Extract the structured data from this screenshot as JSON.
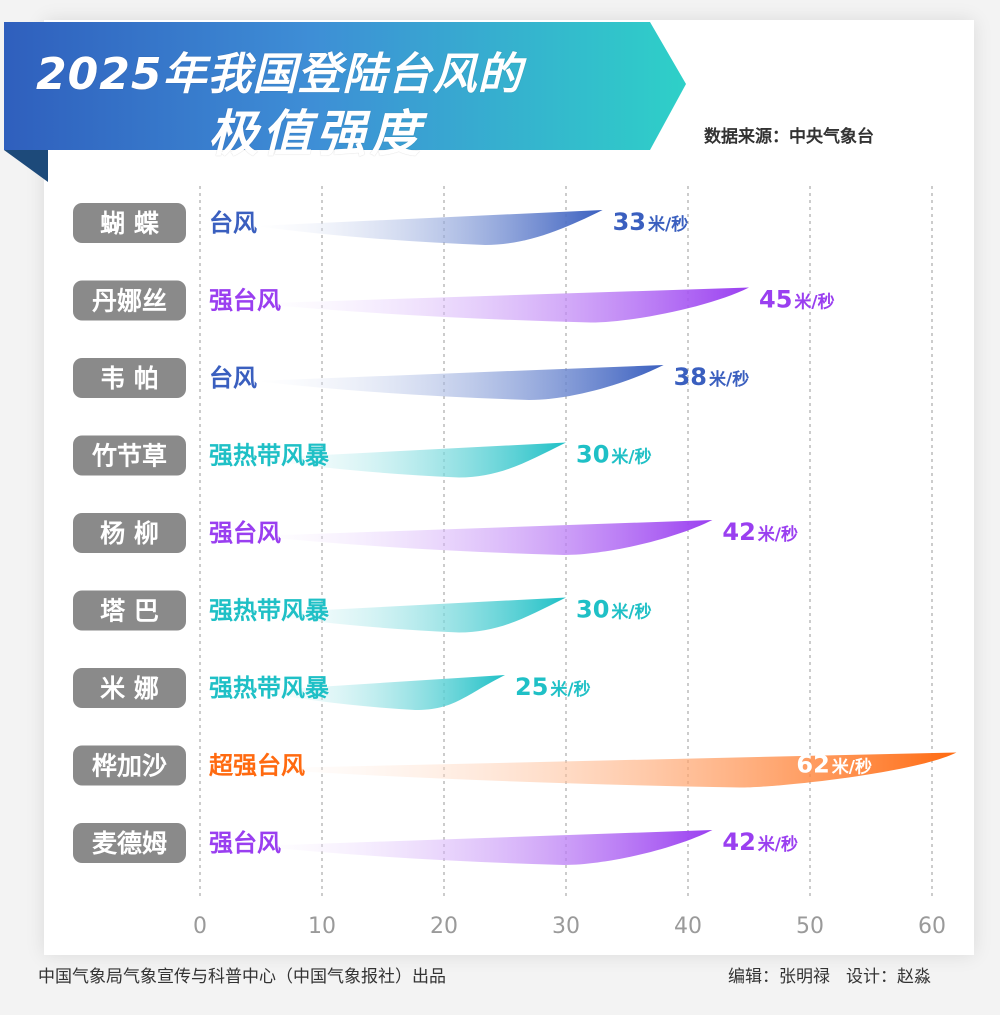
{
  "header": {
    "title_line1": "2025年我国登陆台风的",
    "title_line2": "极值强度",
    "source": "数据来源：中央气象台"
  },
  "footer": {
    "publisher": "中国气象局气象宣传与科普中心（中国气象报社）出品",
    "editor": "编辑：张明禄",
    "designer": "设计：赵淼"
  },
  "colors": {
    "台风": "#3a5fbf",
    "强台风": "#9a3ff0",
    "强热带风暴": "#1fc0c6",
    "超强台风": "#ff6a10",
    "label_box": "#8a8a8a"
  },
  "chart_data": {
    "type": "bar",
    "orientation": "horizontal",
    "unit": "米/秒",
    "xlim": [
      0,
      60
    ],
    "xticks": [
      0,
      10,
      20,
      30,
      40,
      50,
      60
    ],
    "grid": "vertical dashed",
    "categories": [
      "蝴 蝶",
      "丹娜丝",
      "韦 帕",
      "竹节草",
      "杨 柳",
      "塔 巴",
      "米 娜",
      "桦加沙",
      "麦德姆"
    ],
    "grades": [
      "台风",
      "强台风",
      "台风",
      "强热带风暴",
      "强台风",
      "强热带风暴",
      "强热带风暴",
      "超强台风",
      "强台风"
    ],
    "values": [
      33,
      45,
      38,
      30,
      42,
      30,
      25,
      62,
      42
    ]
  }
}
